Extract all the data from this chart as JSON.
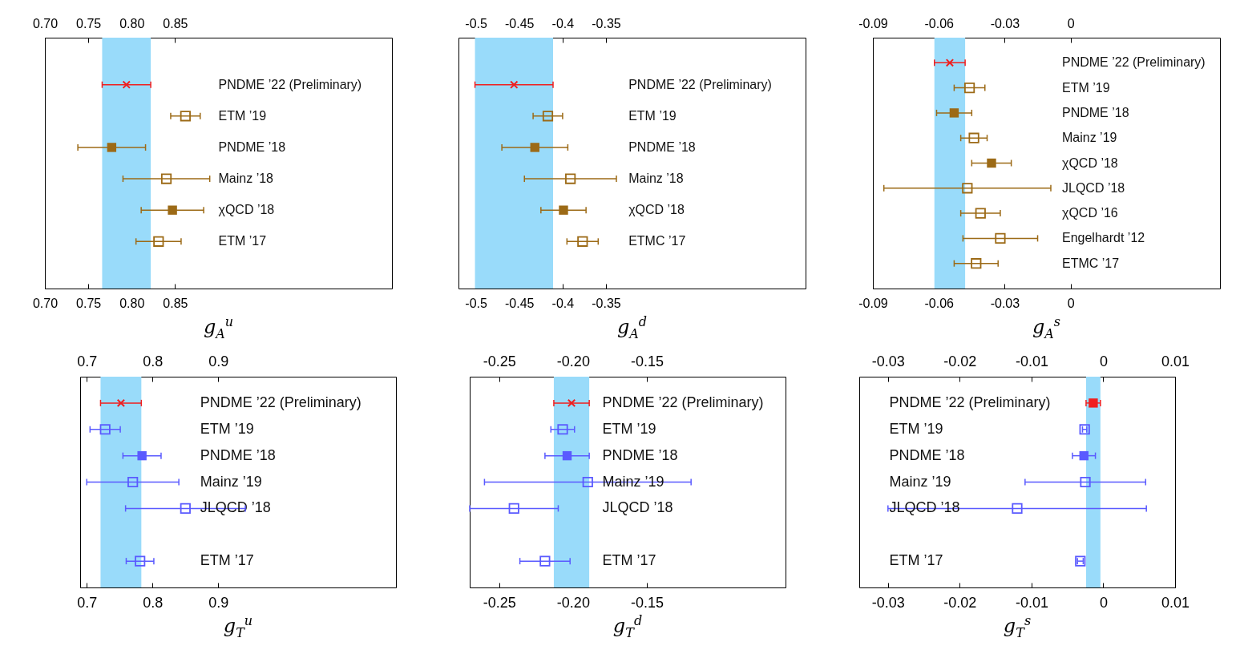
{
  "chart_data": [
    {
      "type": "scatter",
      "orientation": "horizontal",
      "xlabel": "g$_{A}$$^{u}$",
      "tick_labels": "x",
      "categories": [
        "PNDME ’22 (Preliminary)",
        "ETM ’19",
        "PNDME ’18",
        "Mainz ’18",
        "χQCD ’18",
        "ETM ’17"
      ],
      "series": [
        {
          "color": "#f01e1e",
          "marker": "cross",
          "values": [
            0.794,
            null,
            null,
            null,
            null,
            null
          ],
          "errors": [
            0.028,
            null,
            null,
            null,
            null,
            null
          ]
        },
        {
          "color": "#9c6a16",
          "marker": "square",
          "values": [
            null,
            0.862,
            null,
            0.84,
            null,
            0.831
          ],
          "errors": [
            null,
            0.017,
            null,
            0.05,
            null,
            0.026
          ]
        },
        {
          "color": "#9c6a16",
          "marker": "square",
          "values": [
            null,
            null,
            0.777,
            null,
            0.847,
            null
          ],
          "errors": [
            null,
            null,
            0.039,
            null,
            0.036,
            null
          ]
        }
      ],
      "bands": [
        {
          "axis": "x",
          "from": 0.766,
          "to": 0.822,
          "color": "#99dbfa"
        }
      ],
      "xlim": [
        0.7,
        1.1
      ],
      "xticks": [
        {
          "value": 0.7,
          "label": "0.70"
        },
        0.75,
        {
          "value": 0.8,
          "label": "0.80"
        },
        0.85
      ],
      "x2lim": [
        0.7,
        1.1
      ],
      "x2ticks": [
        {
          "value": 0.7,
          "label": "0.70"
        },
        0.75,
        {
          "value": 0.8,
          "label": "0.80"
        },
        0.85
      ]
    },
    {
      "type": "scatter",
      "orientation": "horizontal",
      "xlabel": "g$_{A}$$^{d}$",
      "tick_labels": "x",
      "categories": [
        "PNDME ’22 (Preliminary)",
        "ETM ’19",
        "PNDME ’18",
        "Mainz ’18",
        "χQCD ’18",
        "ETMC ’17"
      ],
      "series": [
        {
          "color": "#f01e1e",
          "marker": "cross",
          "values": [
            -0.456,
            null,
            null,
            null,
            null,
            null
          ],
          "errors": [
            0.045,
            null,
            null,
            null,
            null,
            null
          ]
        },
        {
          "color": "#9c6a16",
          "marker": "square",
          "values": [
            null,
            -0.417,
            null,
            -0.391,
            null,
            -0.377
          ],
          "errors": [
            null,
            0.017,
            null,
            0.053,
            null,
            0.018
          ]
        },
        {
          "color": "#9c6a16",
          "marker": "square",
          "values": [
            null,
            null,
            -0.432,
            null,
            -0.399,
            null
          ],
          "errors": [
            null,
            null,
            0.038,
            null,
            0.026,
            null
          ]
        }
      ],
      "bands": [
        {
          "axis": "x",
          "from": -0.501,
          "to": -0.411,
          "color": "#99dbfa"
        }
      ],
      "xlim": [
        -0.52,
        -0.12
      ],
      "xticks": [
        -0.5,
        -0.45,
        -0.4,
        -0.35
      ],
      "x2lim": [
        -0.52,
        -0.12
      ],
      "x2ticks": [
        -0.5,
        -0.45,
        -0.4,
        -0.35
      ]
    },
    {
      "type": "scatter",
      "orientation": "horizontal",
      "xlabel": "g$_{A}$$^{s}$",
      "tick_labels": "x",
      "categories": [
        "PNDME ’22 (Preliminary)",
        "ETM ’19",
        "PNDME ’18",
        "Mainz ’19",
        "χQCD ’18",
        "JLQCD ’18",
        "χQCD ’16",
        "Engelhardt ’12",
        "ETMC ’17"
      ],
      "series": [
        {
          "color": "#f01e1e",
          "marker": "cross",
          "values": [
            -0.055,
            null,
            null,
            null,
            null,
            null,
            null,
            null,
            null
          ],
          "errors": [
            0.007,
            null,
            null,
            null,
            null,
            null,
            null,
            null,
            null
          ]
        },
        {
          "color": "#9c6a16",
          "marker": "square",
          "values": [
            null,
            -0.046,
            null,
            -0.044,
            null,
            -0.047,
            -0.041,
            -0.032,
            -0.043
          ],
          "errors": [
            null,
            0.007,
            null,
            0.006,
            null,
            0.038,
            0.009,
            0.017,
            0.01
          ]
        },
        {
          "color": "#9c6a16",
          "marker": "square",
          "values": [
            null,
            null,
            -0.053,
            null,
            -0.036,
            null,
            null,
            null,
            null
          ],
          "errors": [
            null,
            null,
            0.008,
            null,
            0.009,
            null,
            null,
            null,
            null
          ]
        }
      ],
      "bands": [
        {
          "axis": "x",
          "from": -0.062,
          "to": -0.048,
          "color": "#99dbfa"
        }
      ],
      "xlim": [
        -0.09,
        0.068
      ],
      "xticks": [
        -0.09,
        -0.06,
        -0.03,
        0
      ],
      "x2lim": [
        -0.09,
        0.068
      ],
      "x2ticks": [
        -0.09,
        -0.06,
        -0.03,
        0
      ]
    },
    {
      "type": "scatter",
      "orientation": "horizontal",
      "xlabel": "g$_{T}$$^{u}$",
      "tick_labels": "x",
      "categories": [
        "PNDME ’22 (Preliminary)",
        "ETM ’19",
        "PNDME ’18",
        "Mainz ’19",
        "JLQCD ’18",
        null,
        "ETM ’17"
      ],
      "series": [
        {
          "color": "#f01e1e",
          "marker": "cross",
          "values": [
            0.752,
            null,
            null,
            null,
            null,
            null,
            null
          ],
          "errors": [
            0.031,
            null,
            null,
            null,
            null,
            null,
            null
          ]
        },
        {
          "color": "#5a5aff",
          "marker": "square",
          "values": [
            null,
            0.728,
            null,
            0.77,
            0.85,
            null,
            0.781
          ],
          "errors": [
            null,
            0.023,
            null,
            0.07,
            0.091,
            null,
            0.021
          ]
        },
        {
          "color": "#5a5aff",
          "marker": "square",
          "values": [
            null,
            null,
            0.784,
            null,
            null,
            null,
            null
          ],
          "errors": [
            null,
            null,
            0.029,
            null,
            null,
            null,
            null
          ]
        }
      ],
      "bands": [
        {
          "axis": "x",
          "from": 0.721,
          "to": 0.783,
          "color": "#99dbfa"
        }
      ],
      "xlim": [
        0.69,
        1.17
      ],
      "xticks": [
        0.7,
        0.8,
        0.9
      ],
      "x2lim": [
        0.69,
        1.17
      ],
      "x2ticks": [
        0.7,
        0.8,
        0.9
      ]
    },
    {
      "type": "scatter",
      "orientation": "horizontal",
      "xlabel": "g$_{T}$$^{d}$",
      "tick_labels": "x",
      "categories": [
        "PNDME ’22 (Preliminary)",
        "ETM ’19",
        "PNDME ’18",
        "Mainz ’19",
        "JLQCD ’18",
        null,
        "ETM ’17"
      ],
      "series": [
        {
          "color": "#f01e1e",
          "marker": "cross",
          "values": [
            -0.201,
            null,
            null,
            null,
            null,
            null,
            null
          ],
          "errors": [
            0.012,
            null,
            null,
            null,
            null,
            null,
            null
          ]
        },
        {
          "color": "#5a5aff",
          "marker": "square",
          "values": [
            null,
            -0.207,
            null,
            -0.19,
            -0.24,
            null,
            -0.219
          ],
          "errors": [
            null,
            0.008,
            null,
            0.07,
            0.03,
            null,
            0.017
          ]
        },
        {
          "color": "#5a5aff",
          "marker": "square",
          "values": [
            null,
            null,
            -0.204,
            null,
            null,
            null,
            null
          ],
          "errors": [
            null,
            null,
            0.015,
            null,
            null,
            null,
            null
          ]
        }
      ],
      "bands": [
        {
          "axis": "x",
          "from": -0.213,
          "to": -0.189,
          "color": "#99dbfa"
        }
      ],
      "xlim": [
        -0.27,
        -0.056
      ],
      "xticks": [
        -0.25,
        {
          "value": -0.2,
          "label": "-0.20"
        },
        -0.15
      ],
      "x2lim": [
        -0.27,
        -0.056
      ],
      "x2ticks": [
        -0.25,
        {
          "value": -0.2,
          "label": "-0.20"
        },
        -0.15
      ]
    },
    {
      "type": "scatter",
      "orientation": "horizontal",
      "xlabel": "g$_{T}$$^{s}$",
      "tick_labels": "x",
      "categories": [
        "PNDME ’22 (Preliminary)",
        "ETM ’19",
        "PNDME ’18",
        "Mainz ’19",
        "JLQCD ’18",
        null,
        "ETM ’17"
      ],
      "series": [
        {
          "color": "#f01e1e",
          "marker": "square",
          "values": [
            -0.0014,
            null,
            null,
            null,
            null,
            null,
            null
          ],
          "errors": [
            0.001,
            null,
            null,
            null,
            null,
            null,
            null
          ]
        },
        {
          "color": "#5a5aff",
          "marker": "square",
          "values": [
            null,
            -0.0026,
            null,
            -0.0025,
            -0.012,
            null,
            -0.0032
          ],
          "errors": [
            null,
            0.0003,
            null,
            0.0084,
            0.018,
            null,
            0.0004
          ]
        },
        {
          "color": "#5a5aff",
          "marker": "square",
          "values": [
            null,
            null,
            -0.0027,
            null,
            null,
            null,
            null
          ],
          "errors": [
            null,
            null,
            0.0016,
            null,
            null,
            null,
            null
          ]
        }
      ],
      "bands": [
        {
          "axis": "x",
          "from": -0.0024,
          "to": -0.0004,
          "color": "#99dbfa"
        }
      ],
      "xlim": [
        -0.034,
        0.01
      ],
      "xticks": [
        -0.03,
        -0.02,
        -0.01,
        0,
        0.01
      ],
      "x2lim": [
        -0.034,
        0.01
      ],
      "x2ticks": [
        -0.03,
        -0.02,
        -0.01,
        0,
        0.01
      ]
    }
  ]
}
